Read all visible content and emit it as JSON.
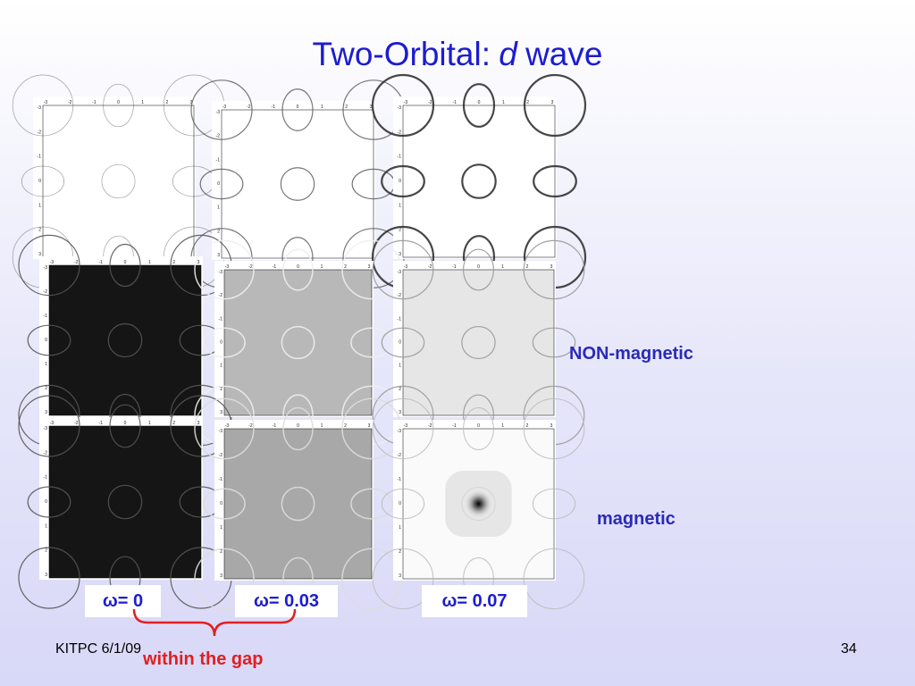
{
  "header": {
    "title_prefix": "Two-Orbital:",
    "title_italic": "d",
    "title_suffix": "wave"
  },
  "panels": {
    "axis_ticks": [
      -3,
      -2,
      -1,
      0,
      1,
      2,
      3
    ]
  },
  "row_labels": [
    "NON-magnetic",
    "magnetic"
  ],
  "column_labels": [
    "ω= 0",
    "ω= 0.03",
    "ω= 0.07"
  ],
  "annotation": "within the gap",
  "footer": {
    "left": "KITPC 6/1/09",
    "page": "34"
  }
}
